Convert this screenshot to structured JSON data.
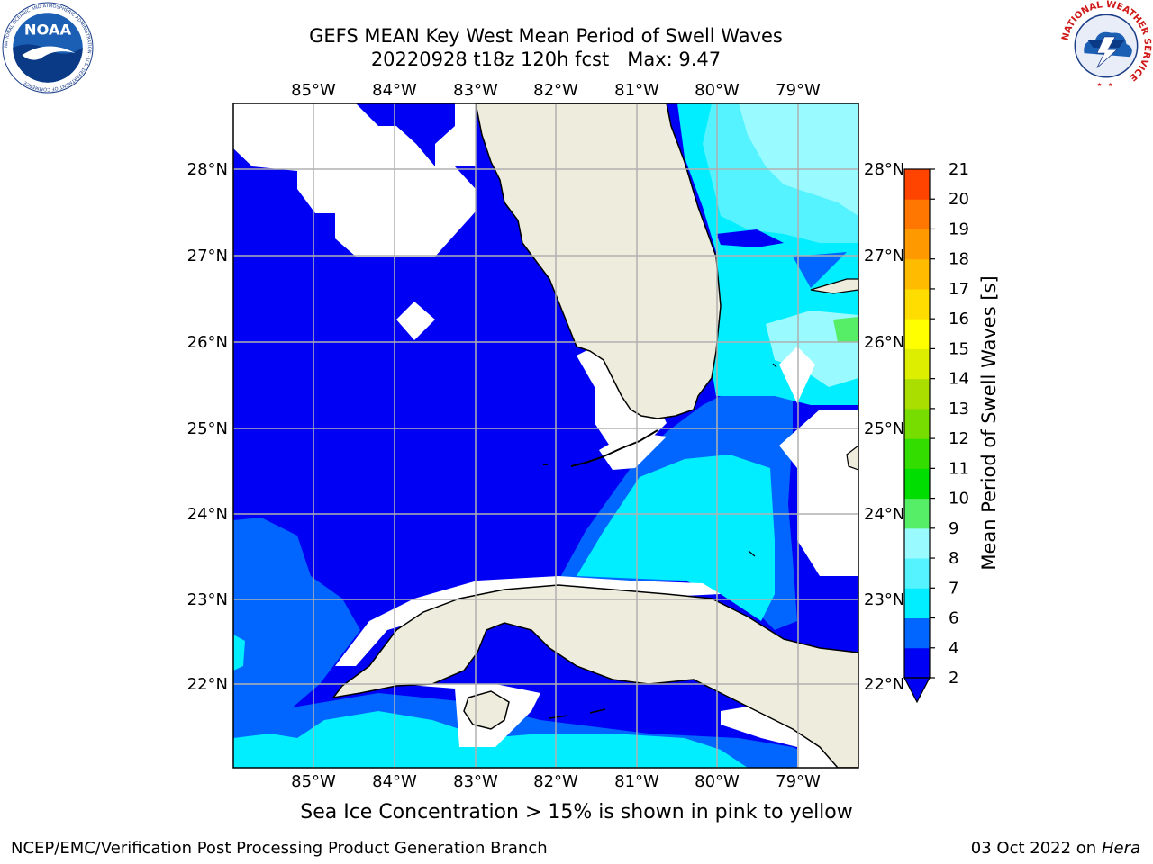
{
  "title": {
    "line1": "GEFS MEAN Key West Mean Period of Swell Waves",
    "line2": "20220928 t18z 120h fcst   Max: 9.47"
  },
  "logos": {
    "left": {
      "name": "noaa-logo",
      "text": "NOAA",
      "ring_text": "NATIONAL OCEANIC AND ATMOSPHERIC ADMINISTRATION · U.S. DEPARTMENT OF COMMERCE"
    },
    "right": {
      "name": "nws-logo",
      "ring_text": "NATIONAL WEATHER SERVICE"
    }
  },
  "map": {
    "lon_ticks": [
      "85°W",
      "84°W",
      "83°W",
      "82°W",
      "81°W",
      "80°W",
      "79°W"
    ],
    "lat_ticks": [
      "28°N",
      "27°N",
      "26°N",
      "25°N",
      "24°N",
      "23°N",
      "22°N"
    ],
    "colors": {
      "ocean_2_4": "#0000f5",
      "ocean_4_6": "#0066ff",
      "ocean_6_7": "#00eeff",
      "ocean_7_8": "#55f3ff",
      "ocean_8_9": "#99fbff",
      "ocean_9_10": "#55ee66",
      "land": "#eeeddd",
      "no_data": "#ffffff",
      "grid": "#b0b0b0"
    }
  },
  "colorbar": {
    "label": "Mean Period of Swell Waves [s]",
    "ticks": [
      "2",
      "4",
      "6",
      "7",
      "8",
      "9",
      "10",
      "11",
      "12",
      "13",
      "14",
      "15",
      "16",
      "17",
      "18",
      "19",
      "20",
      "21"
    ],
    "colors": [
      "#0000f5",
      "#0066ff",
      "#00eeff",
      "#55f3ff",
      "#99fbff",
      "#55ee66",
      "#00dd00",
      "#33dd00",
      "#77dd00",
      "#aadd00",
      "#ddee00",
      "#ffff00",
      "#ffdd00",
      "#ffbb00",
      "#ff9900",
      "#ff7700",
      "#ff4400",
      "#ff1100"
    ]
  },
  "footer": {
    "ice_note": "Sea Ice Concentration > 15% is shown in pink to yellow",
    "credit": "NCEP/EMC/Verification Post Processing Product Generation Branch",
    "date": "03 Oct 2022 on ",
    "host": "Hera"
  }
}
